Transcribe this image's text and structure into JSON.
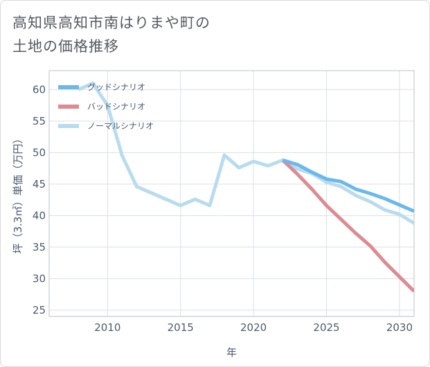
{
  "chart_data": {
    "type": "line",
    "title_lines": [
      "高知県高知市南はりまや町の",
      "土地の価格推移"
    ],
    "xlabel": "年",
    "ylabel": "坪（3.3㎡）単価（万円）",
    "xlim": [
      2006,
      2031
    ],
    "ylim": [
      24,
      63
    ],
    "x_ticks": [
      2010,
      2015,
      2020,
      2025,
      2030
    ],
    "y_ticks": [
      25,
      30,
      35,
      40,
      45,
      50,
      55,
      60
    ],
    "grid": true,
    "legend_position": "top-left",
    "series": [
      {
        "name": "グッドシナリオ",
        "color": "#6ab8ec",
        "x": [
          2022,
          2023,
          2024,
          2025,
          2026,
          2027,
          2028,
          2029,
          2030,
          2031
        ],
        "values": [
          48.8,
          48.1,
          46.9,
          45.8,
          45.4,
          44.2,
          43.5,
          42.7,
          41.7,
          40.7
        ]
      },
      {
        "name": "バッドシナリオ",
        "color": "#de8a92",
        "x": [
          2022,
          2023,
          2024,
          2025,
          2026,
          2027,
          2028,
          2029,
          2030,
          2031
        ],
        "values": [
          48.8,
          46.6,
          44.2,
          41.6,
          39.4,
          37.2,
          35.2,
          32.6,
          30.3,
          28.0
        ]
      },
      {
        "name": "ノーマルシナリオ",
        "color": "#b8dcee",
        "x": [
          2008,
          2009,
          2010,
          2011,
          2012,
          2013,
          2014,
          2015,
          2016,
          2017,
          2018,
          2019,
          2020,
          2021,
          2022,
          2023,
          2024,
          2025,
          2026,
          2027,
          2028,
          2029,
          2030,
          2031
        ],
        "values": [
          60.0,
          61.0,
          57.5,
          49.5,
          44.6,
          43.6,
          42.6,
          41.6,
          42.6,
          41.6,
          49.6,
          47.6,
          48.6,
          47.9,
          48.8,
          47.4,
          46.7,
          45.3,
          44.6,
          43.2,
          42.2,
          40.9,
          40.2,
          38.8
        ]
      }
    ]
  }
}
